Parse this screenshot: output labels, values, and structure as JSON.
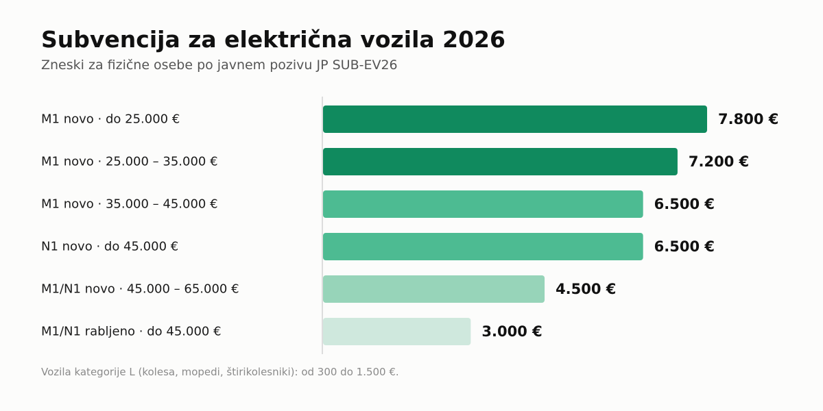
{
  "chart_data": {
    "type": "bar",
    "orientation": "horizontal",
    "title": "Subvencija za električna vozila 2026",
    "subtitle": "Zneski za fizične osebe po javnem pozivu JP SUB-EV26",
    "footnote": "Vozila kategorije L (kolesa, mopedi, štirikolesniki): od 300 do 1.500 €.",
    "categories": [
      "M1 novo · do 25.000 €",
      "M1 novo · 25.000 – 35.000 €",
      "M1 novo · 35.000 – 45.000 €",
      "N1 novo · do 45.000 €",
      "M1/N1 novo · 45.000 – 65.000 €",
      "M1/N1 rabljeno · do 45.000 €"
    ],
    "values": [
      7800,
      7200,
      6500,
      6500,
      4500,
      3000
    ],
    "value_labels": [
      "7.800 €",
      "7.200 €",
      "6.500 €",
      "6.500 €",
      "4.500 €",
      "3.000 €"
    ],
    "bar_colors": [
      "#108a5e",
      "#108a5e",
      "#4dbb92",
      "#4dbb92",
      "#97d4b9",
      "#cfe8dd"
    ],
    "axis_color": "#dddddd",
    "xlim": [
      0,
      7800
    ],
    "grid": false,
    "legend": "none"
  }
}
